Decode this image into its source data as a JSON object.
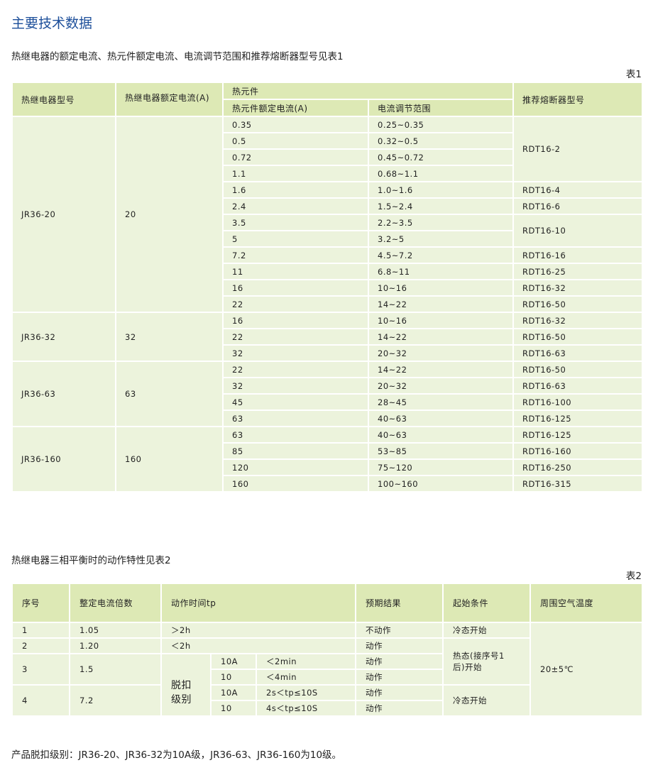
{
  "title": "主要技术数据",
  "table1": {
    "caption": "热继电器的额定电流、热元件额定电流、电流调节范围和推荐熔断器型号见表1",
    "label": "表1",
    "headers": {
      "model": "热继电器型号",
      "rated": "热继电器额定电流(A)",
      "element": "热元件",
      "element_rated": "热元件额定电流(A)",
      "range": "电流调节范围",
      "fuse": "推荐熔断器型号"
    },
    "groups": [
      {
        "model": "JR36-20",
        "rated": "20",
        "rows": [
          [
            "0.35",
            "0.25~0.35"
          ],
          [
            "0.5",
            "0.32~0.5"
          ],
          [
            "0.72",
            "0.45~0.72"
          ],
          [
            "1.1",
            "0.68~1.1"
          ],
          [
            "1.6",
            "1.0~1.6"
          ],
          [
            "2.4",
            "1.5~2.4"
          ],
          [
            "3.5",
            "2.2~3.5"
          ],
          [
            "5",
            "3.2~5"
          ],
          [
            "7.2",
            "4.5~7.2"
          ],
          [
            "11",
            "6.8~11"
          ],
          [
            "16",
            "10~16"
          ],
          [
            "22",
            "14~22"
          ]
        ],
        "fuses": [
          {
            "label": "RDT16-2",
            "span": 4
          },
          {
            "label": "RDT16-4",
            "span": 1
          },
          {
            "label": "RDT16-6",
            "span": 1
          },
          {
            "label": "RDT16-10",
            "span": 2
          },
          {
            "label": "RDT16-16",
            "span": 1
          },
          {
            "label": "RDT16-25",
            "span": 1
          },
          {
            "label": "RDT16-32",
            "span": 1
          },
          {
            "label": "RDT16-50",
            "span": 1
          }
        ]
      },
      {
        "model": "JR36-32",
        "rated": "32",
        "rows": [
          [
            "16",
            "10~16"
          ],
          [
            "22",
            "14~22"
          ],
          [
            "32",
            "20~32"
          ]
        ],
        "fuses": [
          {
            "label": "RDT16-32",
            "span": 1
          },
          {
            "label": "RDT16-50",
            "span": 1
          },
          {
            "label": "RDT16-63",
            "span": 1
          }
        ]
      },
      {
        "model": "JR36-63",
        "rated": "63",
        "rows": [
          [
            "22",
            "14~22"
          ],
          [
            "32",
            "20~32"
          ],
          [
            "45",
            "28~45"
          ],
          [
            "63",
            "40~63"
          ]
        ],
        "fuses": [
          {
            "label": "RDT16-50",
            "span": 1
          },
          {
            "label": "RDT16-63",
            "span": 1
          },
          {
            "label": "RDT16-100",
            "span": 1
          },
          {
            "label": "RDT16-125",
            "span": 1
          }
        ]
      },
      {
        "model": "JR36-160",
        "rated": "160",
        "rows": [
          [
            "63",
            "40~63"
          ],
          [
            "85",
            "53~85"
          ],
          [
            "120",
            "75~120"
          ],
          [
            "160",
            "100~160"
          ]
        ],
        "fuses": [
          {
            "label": "RDT16-125",
            "span": 1
          },
          {
            "label": "RDT16-160",
            "span": 1
          },
          {
            "label": "RDT16-250",
            "span": 1
          },
          {
            "label": "RDT16-315",
            "span": 1
          }
        ]
      }
    ]
  },
  "table2": {
    "caption": "热继电器三相平衡时的动作特性见表2",
    "label": "表2",
    "headers": [
      "序号",
      "整定电流倍数",
      "动作时间tp",
      "预期结果",
      "起始条件",
      "周围空气温度"
    ],
    "rows": [
      {
        "no": "1",
        "mult": "1.05",
        "time": "＞2h",
        "result": "不动作"
      },
      {
        "no": "2",
        "mult": "1.20",
        "time": "＜2h",
        "result": "动作"
      },
      {
        "no": "3",
        "mult": "1.5",
        "sub": [
          {
            "cls": "10A",
            "time": "＜2min",
            "result": "动作"
          },
          {
            "cls": "10",
            "time": "＜4min",
            "result": "动作"
          }
        ]
      },
      {
        "no": "4",
        "mult": "7.2",
        "sub": [
          {
            "cls": "10A",
            "time": "2s＜tp≤10S",
            "result": "动作"
          },
          {
            "cls": "10",
            "time": "4s＜tp≤10S",
            "result": "动作"
          }
        ]
      }
    ],
    "trip_class_label": "脱扣级别",
    "cond_cold": "冷态开始",
    "cond_hot": "热态(接序号1后)开始",
    "cond_cold2": "冷态开始",
    "temperature": "20±5℃"
  },
  "note": "产品脱扣级别：JR36-20、JR36-32为10A级，JR36-63、JR36-160为10级。",
  "colors": {
    "title": "#1d4f9a",
    "header_bg": "#dde9b5",
    "body_bg": "#ecf3dc"
  }
}
